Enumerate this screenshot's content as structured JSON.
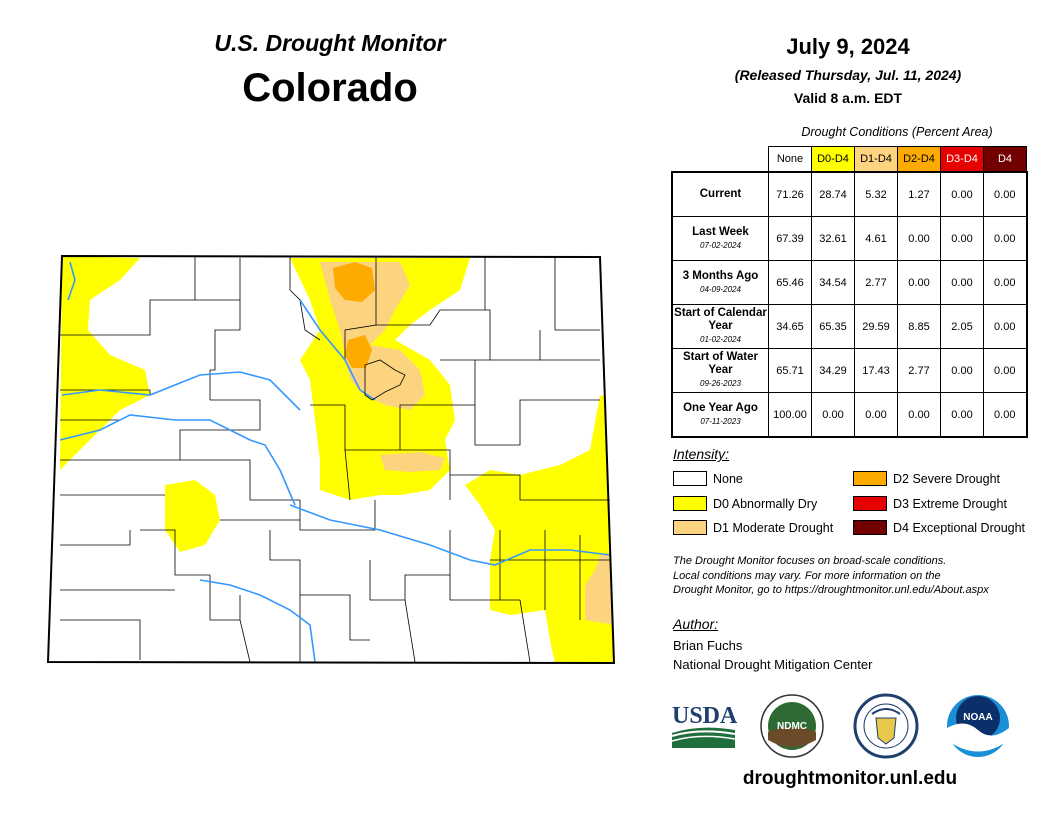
{
  "header": {
    "product": "U.S. Drought Monitor",
    "state": "Colorado",
    "date": "July 9, 2024",
    "released": "(Released Thursday, Jul. 11, 2024)",
    "valid": "Valid 8 a.m. EDT"
  },
  "table": {
    "caption": "Drought Conditions (Percent Area)",
    "columns": [
      {
        "label": "None",
        "color": "#ffffff",
        "text_color": "#000000"
      },
      {
        "label": "D0-D4",
        "color": "#ffff00",
        "text_color": "#000000"
      },
      {
        "label": "D1-D4",
        "color": "#fcd37f",
        "text_color": "#000000"
      },
      {
        "label": "D2-D4",
        "color": "#ffaa00",
        "text_color": "#000000"
      },
      {
        "label": "D3-D4",
        "color": "#e60000",
        "text_color": "#ffffff"
      },
      {
        "label": "D4",
        "color": "#730000",
        "text_color": "#ffffff"
      }
    ],
    "rows": [
      {
        "label": "Current",
        "sub": "",
        "values": [
          "71.26",
          "28.74",
          "5.32",
          "1.27",
          "0.00",
          "0.00"
        ]
      },
      {
        "label": "Last Week",
        "sub": "07-02-2024",
        "values": [
          "67.39",
          "32.61",
          "4.61",
          "0.00",
          "0.00",
          "0.00"
        ]
      },
      {
        "label": "3 Months Ago",
        "sub": "04-09-2024",
        "values": [
          "65.46",
          "34.54",
          "2.77",
          "0.00",
          "0.00",
          "0.00"
        ]
      },
      {
        "label": "Start of Calendar Year",
        "sub": "01-02-2024",
        "values": [
          "34.65",
          "65.35",
          "29.59",
          "8.85",
          "2.05",
          "0.00"
        ]
      },
      {
        "label": "Start of Water Year",
        "sub": "09-26-2023",
        "values": [
          "65.71",
          "34.29",
          "17.43",
          "2.77",
          "0.00",
          "0.00"
        ]
      },
      {
        "label": "One Year Ago",
        "sub": "07-11-2023",
        "values": [
          "100.00",
          "0.00",
          "0.00",
          "0.00",
          "0.00",
          "0.00"
        ]
      }
    ]
  },
  "legend": {
    "title": "Intensity:",
    "items": [
      {
        "label": "None",
        "color": "#ffffff"
      },
      {
        "label": "D0 Abnormally Dry",
        "color": "#ffff00"
      },
      {
        "label": "D1 Moderate Drought",
        "color": "#fcd37f"
      },
      {
        "label": "D2 Severe Drought",
        "color": "#ffaa00"
      },
      {
        "label": "D3 Extreme Drought",
        "color": "#e60000"
      },
      {
        "label": "D4 Exceptional Drought",
        "color": "#730000"
      }
    ]
  },
  "note": {
    "line1": "The Drought Monitor focuses on broad-scale conditions.",
    "line2": "Local conditions may vary. For more information on the",
    "line3": "Drought Monitor, go to https://droughtmonitor.unl.edu/About.aspx"
  },
  "author": {
    "title": "Author:",
    "name": "Brian Fuchs",
    "org": "National Drought Mitigation Center"
  },
  "logos": {
    "usda": "USDA",
    "ndmc": "NDMC",
    "noaa": "NOAA"
  },
  "website": "droughtmonitor.unl.edu",
  "map_colors": {
    "d0": "#ffff00",
    "d1": "#fcd37f",
    "d2": "#ffaa00",
    "rivers": "#3399ff",
    "borders": "#000000"
  }
}
